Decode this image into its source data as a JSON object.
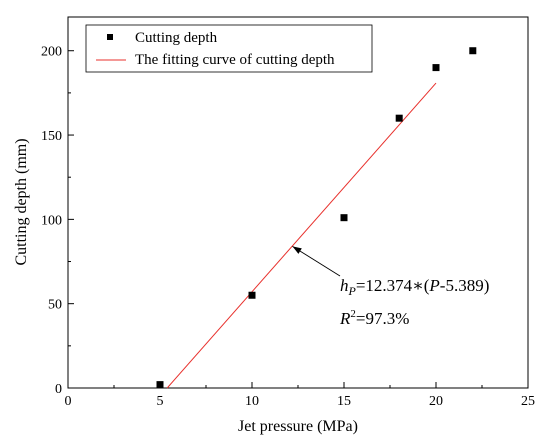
{
  "chart_data": {
    "type": "scatter",
    "title": "",
    "xlabel": "Jet pressure (MPa)",
    "ylabel": "Cutting depth (mm)",
    "xlim": [
      0,
      25
    ],
    "ylim": [
      0,
      220
    ],
    "xticks": [
      0,
      5,
      10,
      15,
      20,
      25
    ],
    "yticks": [
      0,
      50,
      100,
      150,
      200
    ],
    "grid": false,
    "legend_position": "top-left",
    "series": [
      {
        "name": "Cutting depth",
        "kind": "scatter",
        "marker": "square",
        "color": "#000000",
        "x": [
          5,
          10,
          15,
          18,
          20,
          22
        ],
        "y": [
          2,
          55,
          101,
          160,
          190,
          200
        ]
      },
      {
        "name": "The fitting curve of cutting depth",
        "kind": "line",
        "color": "#e8302c",
        "x": [
          5.389,
          20
        ],
        "y": [
          0,
          180.8
        ],
        "slope": 12.374,
        "intercept_x": 5.389
      }
    ],
    "annotation": {
      "h_symbol": "h",
      "h_subscript": "P",
      "eq_prefix": "=12.374∗(",
      "eq_var": "P",
      "eq_suffix": "-5.389)",
      "r_symbol": "R",
      "r_superscript": "2",
      "r_value": "=97.3%",
      "arrow_target": [
        12.2,
        84
      ]
    }
  }
}
